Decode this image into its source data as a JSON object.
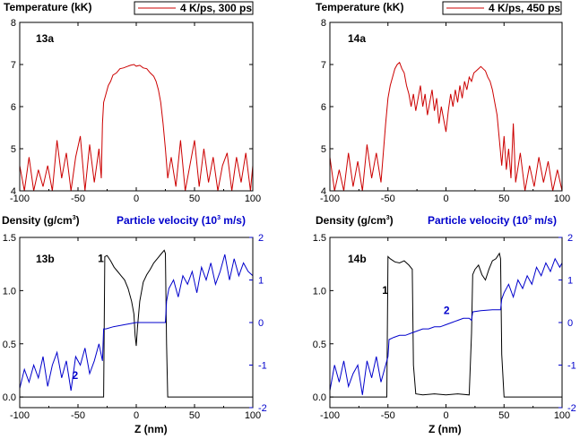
{
  "chart_data": [
    {
      "id": "13a",
      "type": "line",
      "panel_label": "13a",
      "ylabel": "Temperature (kK)",
      "legend": "4 K/ps, 300 ps",
      "xlim": [
        -100,
        100
      ],
      "ylim": [
        4,
        8
      ],
      "xticks": [
        "-100",
        "-50",
        "0",
        "50",
        "100"
      ],
      "yticks": [
        "4",
        "5",
        "6",
        "7",
        "8"
      ],
      "series": [
        {
          "color": "#cc0000",
          "x": [
            -100,
            -96,
            -92,
            -88,
            -84,
            -80,
            -76,
            -72,
            -68,
            -64,
            -60,
            -56,
            -52,
            -48,
            -44,
            -40,
            -36,
            -32,
            -30,
            -29,
            -28,
            -26,
            -24,
            -22,
            -20,
            -17,
            -14,
            -11,
            -8,
            -5,
            -2,
            0,
            3,
            6,
            9,
            12,
            15,
            17,
            19,
            21,
            23,
            25,
            27,
            30,
            34,
            38,
            42,
            46,
            50,
            54,
            58,
            62,
            66,
            70,
            74,
            78,
            82,
            86,
            90,
            94,
            98,
            100
          ],
          "y": [
            4.6,
            4.0,
            4.8,
            4.0,
            4.5,
            4.1,
            4.6,
            4.0,
            5.2,
            4.3,
            4.9,
            4.0,
            4.8,
            5.3,
            4.0,
            5.1,
            4.2,
            5.0,
            4.3,
            5.6,
            6.1,
            6.3,
            6.5,
            6.6,
            6.75,
            6.8,
            6.9,
            6.92,
            6.95,
            6.98,
            7.0,
            6.96,
            6.98,
            6.92,
            6.9,
            6.8,
            6.72,
            6.6,
            6.4,
            6.1,
            5.6,
            5.0,
            4.3,
            4.8,
            4.1,
            5.2,
            4.0,
            4.6,
            5.2,
            4.1,
            5.0,
            4.2,
            4.8,
            4.0,
            4.6,
            4.9,
            4.0,
            4.8,
            4.2,
            4.9,
            4.0,
            4.6
          ]
        }
      ]
    },
    {
      "id": "14a",
      "type": "line",
      "panel_label": "14a",
      "ylabel": "Temperature (kK)",
      "legend": "4 K/ps, 450 ps",
      "xlim": [
        -100,
        100
      ],
      "ylim": [
        4,
        8
      ],
      "xticks": [
        "-100",
        "-50",
        "0",
        "50",
        "100"
      ],
      "yticks": [
        "4",
        "5",
        "6",
        "7",
        "8"
      ],
      "series": [
        {
          "color": "#cc0000",
          "x": [
            -100,
            -96,
            -92,
            -88,
            -84,
            -80,
            -76,
            -72,
            -68,
            -64,
            -60,
            -56,
            -52,
            -50,
            -48,
            -46,
            -44,
            -42,
            -40,
            -38,
            -36,
            -34,
            -32,
            -30,
            -28,
            -26,
            -24,
            -22,
            -20,
            -18,
            -16,
            -14,
            -12,
            -10,
            -8,
            -6,
            -4,
            -2,
            0,
            2,
            4,
            6,
            8,
            10,
            12,
            14,
            16,
            18,
            20,
            22,
            24,
            26,
            28,
            30,
            32,
            34,
            36,
            38,
            40,
            42,
            44,
            46,
            48,
            50,
            52,
            54,
            56,
            58,
            60,
            64,
            68,
            72,
            76,
            80,
            84,
            88,
            92,
            96,
            100
          ],
          "y": [
            4.8,
            4.0,
            4.5,
            4.0,
            4.9,
            4.1,
            4.7,
            4.0,
            5.1,
            4.3,
            4.9,
            4.2,
            5.6,
            6.2,
            6.5,
            6.7,
            6.9,
            7.0,
            7.05,
            6.9,
            6.8,
            6.5,
            6.3,
            6.0,
            6.3,
            5.9,
            6.2,
            6.5,
            6.0,
            6.3,
            5.8,
            6.1,
            6.4,
            5.9,
            6.2,
            5.6,
            6.0,
            5.7,
            5.4,
            5.9,
            6.3,
            6.0,
            6.4,
            6.1,
            6.5,
            6.2,
            6.6,
            6.4,
            6.7,
            6.6,
            6.8,
            6.85,
            6.9,
            6.95,
            6.9,
            6.85,
            6.7,
            6.6,
            6.4,
            6.1,
            5.8,
            5.2,
            4.6,
            5.3,
            4.5,
            5.0,
            4.3,
            5.6,
            4.2,
            4.9,
            4.0,
            4.6,
            4.1,
            4.8,
            4.2,
            4.7,
            4.0,
            4.5,
            4.0
          ]
        }
      ]
    },
    {
      "id": "13b",
      "type": "line",
      "panel_label": "13b",
      "ylabel": "Density (g/cm3)",
      "ylabel_right": "Particle velocity (103 m/s)",
      "xlabel": "Z (nm)",
      "xlim": [
        -100,
        100
      ],
      "ylim": [
        -0.1,
        1.5
      ],
      "ylim_right": [
        -2,
        2
      ],
      "xticks": [
        "-100",
        "-50",
        "0",
        "50",
        "100"
      ],
      "yticks": [
        "0.0",
        "0.5",
        "1.0",
        "1.5"
      ],
      "yticks_right": [
        "-2",
        "-1",
        "0",
        "1",
        "2"
      ],
      "annotations": [
        {
          "text": "1",
          "x": -33,
          "y": 1.27
        },
        {
          "text": "2",
          "x": -55,
          "y": 0.17
        }
      ],
      "series": [
        {
          "name": "1",
          "color": "#000000",
          "axis": "left",
          "x": [
            -100,
            -70,
            -40,
            -28,
            -27,
            -25,
            -22,
            -19,
            -16,
            -13,
            -10,
            -7,
            -4,
            -2,
            -1,
            0,
            1,
            3,
            6,
            9,
            12,
            15,
            18,
            21,
            24,
            25,
            26,
            27,
            40,
            70,
            100
          ],
          "y": [
            0.0,
            0.0,
            0.0,
            0.0,
            1.32,
            1.33,
            1.28,
            1.22,
            1.18,
            1.14,
            1.1,
            1.02,
            0.9,
            0.78,
            0.58,
            0.48,
            0.65,
            0.9,
            1.08,
            1.15,
            1.2,
            1.26,
            1.3,
            1.34,
            1.38,
            1.35,
            0.5,
            0.0,
            0.0,
            0.0,
            0.0
          ]
        },
        {
          "name": "2",
          "color": "#0000cc",
          "axis": "right",
          "x": [
            -100,
            -96,
            -92,
            -88,
            -84,
            -80,
            -76,
            -72,
            -68,
            -64,
            -60,
            -56,
            -52,
            -48,
            -44,
            -40,
            -36,
            -32,
            -29,
            -28,
            -26,
            -20,
            -10,
            0,
            10,
            20,
            25,
            26,
            28,
            32,
            36,
            40,
            44,
            48,
            52,
            56,
            60,
            64,
            68,
            72,
            76,
            80,
            84,
            88,
            92,
            96,
            100
          ],
          "y": [
            -1.55,
            -1.1,
            -1.4,
            -1.0,
            -1.3,
            -0.8,
            -1.5,
            -1.0,
            -0.7,
            -1.3,
            -0.9,
            -1.6,
            -0.8,
            -1.0,
            -0.6,
            -1.2,
            -0.9,
            -0.5,
            -0.9,
            -0.15,
            -0.15,
            -0.1,
            -0.05,
            0.0,
            0.0,
            0.0,
            0.0,
            0.5,
            0.8,
            1.0,
            0.6,
            1.1,
            0.9,
            1.2,
            0.7,
            1.3,
            1.0,
            1.4,
            0.9,
            1.2,
            1.6,
            1.0,
            1.5,
            1.1,
            1.4,
            1.2,
            1.1
          ]
        }
      ]
    },
    {
      "id": "14b",
      "type": "line",
      "panel_label": "14b",
      "ylabel": "Density (g/cm3)",
      "ylabel_right": "Particle velocity (103 m/s)",
      "xlabel": "Z (nm)",
      "xlim": [
        -100,
        100
      ],
      "ylim": [
        -0.1,
        1.5
      ],
      "ylim_right": [
        -2,
        2
      ],
      "xticks": [
        "-100",
        "-50",
        "0",
        "50",
        "100"
      ],
      "yticks": [
        "0.0",
        "0.5",
        "1.0",
        "1.5"
      ],
      "yticks_right": [
        "-2",
        "-1",
        "0",
        "1",
        "2"
      ],
      "annotations": [
        {
          "text": "1",
          "x": -55,
          "y": 0.97
        },
        {
          "text": "2",
          "x": -2,
          "y": 0.78
        }
      ],
      "series": [
        {
          "name": "1",
          "color": "#000000",
          "axis": "left",
          "x": [
            -100,
            -80,
            -60,
            -51,
            -50,
            -48,
            -44,
            -40,
            -36,
            -32,
            -29,
            -28,
            -26,
            -20,
            -10,
            0,
            10,
            20,
            22,
            23,
            25,
            28,
            31,
            34,
            37,
            40,
            43,
            46,
            47,
            48,
            50,
            70,
            100
          ],
          "y": [
            0.0,
            0.0,
            0.0,
            0.0,
            1.32,
            1.3,
            1.27,
            1.26,
            1.28,
            1.24,
            1.2,
            0.3,
            0.03,
            0.02,
            0.03,
            0.02,
            0.03,
            0.02,
            0.6,
            1.15,
            1.2,
            1.24,
            1.15,
            1.1,
            1.2,
            1.28,
            1.3,
            1.35,
            1.3,
            0.4,
            0.0,
            0.0,
            0.0
          ]
        },
        {
          "name": "2",
          "color": "#0000cc",
          "axis": "right",
          "x": [
            -100,
            -96,
            -92,
            -88,
            -84,
            -80,
            -76,
            -72,
            -68,
            -64,
            -60,
            -56,
            -52,
            -50,
            -49,
            -45,
            -40,
            -35,
            -30,
            -25,
            -20,
            -15,
            -10,
            -5,
            0,
            5,
            10,
            15,
            20,
            22,
            23,
            30,
            40,
            47,
            48,
            50,
            54,
            58,
            62,
            66,
            70,
            74,
            78,
            82,
            86,
            90,
            94,
            98,
            100
          ],
          "y": [
            -1.6,
            -1.0,
            -1.4,
            -0.9,
            -1.5,
            -1.2,
            -1.0,
            -1.7,
            -0.9,
            -1.3,
            -0.8,
            -1.4,
            -1.0,
            -0.8,
            -0.4,
            -0.35,
            -0.3,
            -0.3,
            -0.25,
            -0.2,
            -0.15,
            -0.15,
            -0.1,
            -0.1,
            -0.05,
            0.0,
            0.05,
            0.1,
            0.1,
            0.05,
            0.25,
            0.28,
            0.3,
            0.3,
            0.55,
            0.7,
            0.9,
            0.6,
            1.0,
            0.8,
            1.1,
            0.9,
            1.3,
            1.1,
            1.4,
            1.2,
            1.5,
            1.3,
            1.4
          ]
        }
      ]
    }
  ],
  "labels": {
    "temp_ylabel": "Temperature (kK)",
    "density_ylabel_main": "Density (g/cm",
    "density_ylabel_sup": "3",
    "density_ylabel_end": ")",
    "velocity_ylabel_main": "Particle velocity (10",
    "velocity_ylabel_sup": "3",
    "velocity_ylabel_end": " m/s)",
    "z_xlabel": "Z (nm)"
  }
}
